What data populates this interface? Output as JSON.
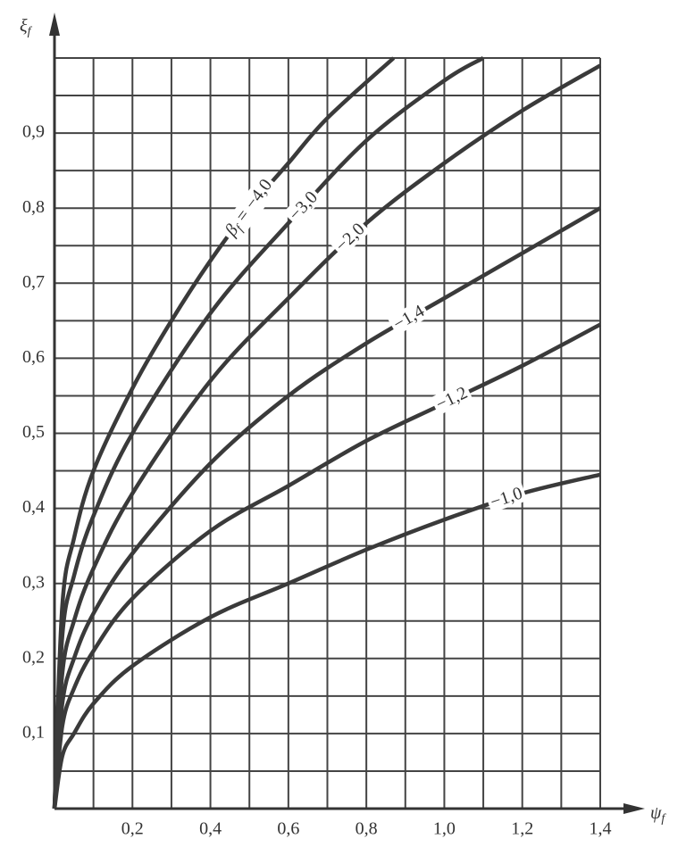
{
  "chart_data": {
    "type": "line",
    "x_label": "ψ",
    "x_label_sub": "f",
    "y_label": "ξ",
    "y_label_sub": "f",
    "curve_label_symbol": "β",
    "curve_label_sub": "f",
    "curve_label_eq": "=",
    "xlim": [
      0,
      1.4
    ],
    "ylim": [
      0,
      1.0
    ],
    "xticks": [
      {
        "value": 0.2,
        "label": "0,2"
      },
      {
        "value": 0.4,
        "label": "0,4"
      },
      {
        "value": 0.6,
        "label": "0,6"
      },
      {
        "value": 0.8,
        "label": "0,8"
      },
      {
        "value": 1.0,
        "label": "1,0"
      },
      {
        "value": 1.2,
        "label": "1,2"
      },
      {
        "value": 1.4,
        "label": "1,4"
      }
    ],
    "yticks": [
      {
        "value": 0.1,
        "label": "0,1"
      },
      {
        "value": 0.2,
        "label": "0,2"
      },
      {
        "value": 0.3,
        "label": "0,3"
      },
      {
        "value": 0.4,
        "label": "0,4"
      },
      {
        "value": 0.5,
        "label": "0,5"
      },
      {
        "value": 0.6,
        "label": "0,6"
      },
      {
        "value": 0.7,
        "label": "0,7"
      },
      {
        "value": 0.8,
        "label": "0,8"
      },
      {
        "value": 0.9,
        "label": "0,9"
      }
    ],
    "xgrid": [
      0,
      0.1,
      0.2,
      0.3,
      0.4,
      0.5,
      0.6,
      0.7,
      0.8,
      0.9,
      1.0,
      1.1,
      1.2,
      1.3,
      1.4
    ],
    "ygrid": [
      0,
      0.05,
      0.1,
      0.15,
      0.2,
      0.25,
      0.3,
      0.35,
      0.4,
      0.45,
      0.5,
      0.55,
      0.6,
      0.65,
      0.7,
      0.75,
      0.8,
      0.85,
      0.9,
      0.95,
      1.0
    ],
    "grid": true,
    "series": [
      {
        "name": "−4,0",
        "color": "#3a3a3a",
        "x": [
          0,
          0.02,
          0.05,
          0.1,
          0.2,
          0.3,
          0.4,
          0.5,
          0.6,
          0.7,
          0.87
        ],
        "values": [
          0,
          0.27,
          0.36,
          0.45,
          0.56,
          0.65,
          0.73,
          0.8,
          0.86,
          0.92,
          1.0
        ]
      },
      {
        "name": "−3,0",
        "color": "#3a3a3a",
        "x": [
          0,
          0.02,
          0.05,
          0.1,
          0.2,
          0.4,
          0.6,
          0.8,
          1.0,
          1.1
        ],
        "values": [
          0,
          0.23,
          0.31,
          0.39,
          0.5,
          0.66,
          0.78,
          0.89,
          0.97,
          1.0
        ]
      },
      {
        "name": "−2,0",
        "color": "#3a3a3a",
        "x": [
          0,
          0.02,
          0.05,
          0.1,
          0.2,
          0.4,
          0.6,
          0.8,
          1.0,
          1.2,
          1.4
        ],
        "values": [
          0,
          0.18,
          0.25,
          0.32,
          0.42,
          0.57,
          0.68,
          0.78,
          0.86,
          0.93,
          0.99
        ]
      },
      {
        "name": "−1,4",
        "color": "#3a3a3a",
        "x": [
          0,
          0.02,
          0.05,
          0.1,
          0.2,
          0.4,
          0.6,
          0.8,
          1.0,
          1.2,
          1.4
        ],
        "values": [
          0,
          0.14,
          0.2,
          0.26,
          0.34,
          0.46,
          0.55,
          0.62,
          0.68,
          0.74,
          0.8
        ]
      },
      {
        "name": "−1,2",
        "color": "#3a3a3a",
        "x": [
          0,
          0.02,
          0.05,
          0.1,
          0.2,
          0.4,
          0.6,
          0.8,
          1.0,
          1.2,
          1.4
        ],
        "values": [
          0,
          0.11,
          0.16,
          0.21,
          0.28,
          0.37,
          0.43,
          0.49,
          0.54,
          0.59,
          0.645
        ]
      },
      {
        "name": "−1,0",
        "color": "#3a3a3a",
        "x": [
          0,
          0.02,
          0.05,
          0.1,
          0.2,
          0.4,
          0.6,
          0.8,
          1.0,
          1.2,
          1.4
        ],
        "values": [
          0,
          0.07,
          0.1,
          0.14,
          0.19,
          0.255,
          0.3,
          0.345,
          0.385,
          0.42,
          0.445
        ]
      }
    ]
  }
}
